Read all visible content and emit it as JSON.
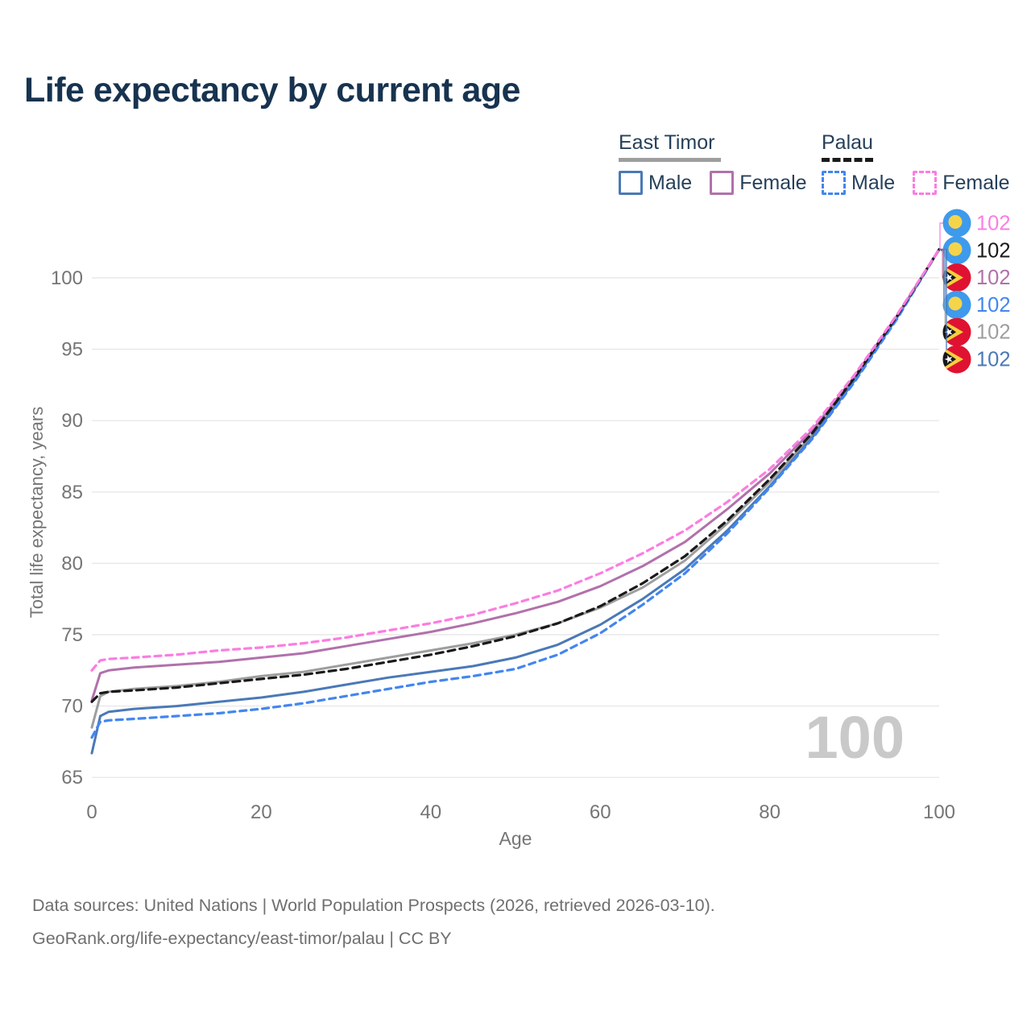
{
  "title": "Life expectancy by current age",
  "legend": {
    "groups": [
      {
        "label": "East Timor",
        "line_style": "solid",
        "underline_color": "#9e9e9e",
        "items": [
          {
            "label": "Male",
            "color": "#4a79b7",
            "dashed": false
          },
          {
            "label": "Female",
            "color": "#b171ab",
            "dashed": false
          }
        ]
      },
      {
        "label": "Palau",
        "line_style": "dashed",
        "underline_color": "#1a1a1a",
        "items": [
          {
            "label": "Male",
            "color": "#4286f0",
            "dashed": true
          },
          {
            "label": "Female",
            "color": "#fb7de1",
            "dashed": true
          }
        ]
      }
    ]
  },
  "chart_data": {
    "type": "line",
    "title": "Life expectancy by current age",
    "xlabel": "Age",
    "ylabel": "Total life expectancy, years",
    "xticks": [
      0,
      20,
      40,
      60,
      80,
      100
    ],
    "yticks": [
      65,
      70,
      75,
      80,
      85,
      90,
      95,
      100
    ],
    "xlim": [
      0,
      100
    ],
    "ylim": [
      64,
      103
    ],
    "grid": "horizontal",
    "legend_position": "top-right",
    "watermark": "100",
    "x": [
      0,
      1,
      2,
      5,
      10,
      15,
      20,
      25,
      30,
      35,
      40,
      45,
      50,
      55,
      60,
      65,
      70,
      75,
      80,
      85,
      90,
      95,
      100
    ],
    "series": [
      {
        "id": "east-timor-both",
        "name": "East Timor",
        "country": "East Timor",
        "color": "#9e9e9e",
        "dashed": false,
        "label_row": 4,
        "end_label": "102",
        "values": [
          68.5,
          70.7,
          71.0,
          71.2,
          71.4,
          71.7,
          72.1,
          72.4,
          72.9,
          73.4,
          73.9,
          74.4,
          75.0,
          75.8,
          76.9,
          78.3,
          80.2,
          82.8,
          85.7,
          89.0,
          92.9,
          97.2,
          102
        ]
      },
      {
        "id": "east-timor-male",
        "name": "East Timor Male",
        "country": "East Timor",
        "color": "#4a79b7",
        "dashed": false,
        "label_row": 5,
        "end_label": "102",
        "values": [
          66.7,
          69.3,
          69.6,
          69.8,
          70.0,
          70.3,
          70.6,
          71.0,
          71.5,
          72.0,
          72.4,
          72.8,
          73.4,
          74.3,
          75.7,
          77.5,
          79.6,
          82.3,
          85.4,
          88.8,
          92.8,
          97.2,
          102
        ]
      },
      {
        "id": "east-timor-female",
        "name": "East Timor Female",
        "country": "East Timor",
        "color": "#b171ab",
        "dashed": false,
        "label_row": 2,
        "end_label": "102",
        "values": [
          70.4,
          72.3,
          72.5,
          72.7,
          72.9,
          73.1,
          73.4,
          73.7,
          74.2,
          74.7,
          75.2,
          75.8,
          76.5,
          77.3,
          78.4,
          79.8,
          81.5,
          83.8,
          86.3,
          89.3,
          93.1,
          97.3,
          102
        ]
      },
      {
        "id": "palau-male",
        "name": "Palau Male",
        "country": "Palau",
        "color": "#4286f0",
        "dashed": true,
        "label_row": 3,
        "end_label": "102",
        "values": [
          67.8,
          68.9,
          69.0,
          69.1,
          69.3,
          69.5,
          69.8,
          70.2,
          70.7,
          71.2,
          71.7,
          72.1,
          72.6,
          73.6,
          75.1,
          77.1,
          79.3,
          82.1,
          85.3,
          88.7,
          92.7,
          97.1,
          102
        ]
      },
      {
        "id": "palau-both",
        "name": "Palau",
        "country": "Palau",
        "color": "#1a1a1a",
        "dashed": true,
        "label_row": 1,
        "end_label": "102",
        "values": [
          70.3,
          70.9,
          71.0,
          71.1,
          71.3,
          71.6,
          71.9,
          72.2,
          72.6,
          73.1,
          73.6,
          74.2,
          74.9,
          75.8,
          77.0,
          78.6,
          80.5,
          83.0,
          85.9,
          89.1,
          93.0,
          97.3,
          102
        ]
      },
      {
        "id": "palau-female",
        "name": "Palau Female",
        "country": "Palau",
        "color": "#fb7de1",
        "dashed": true,
        "label_row": 0,
        "end_label": "102",
        "values": [
          72.5,
          73.2,
          73.3,
          73.4,
          73.6,
          73.9,
          74.1,
          74.4,
          74.8,
          75.3,
          75.8,
          76.4,
          77.2,
          78.1,
          79.3,
          80.7,
          82.3,
          84.3,
          86.6,
          89.5,
          93.2,
          97.4,
          102
        ]
      }
    ],
    "flag_colors": {
      "palau": {
        "field": "#3e9aec",
        "moon": "#f4d44a"
      },
      "east_timor": {
        "field": "#e01231",
        "chevron": "#f6cf3e",
        "triangle": "#17171c",
        "star": "#ffffff"
      }
    }
  },
  "footer": {
    "line1": "Data sources: United Nations | World Population Prospects (2026, retrieved 2026-03-10).",
    "line2": "GeoRank.org/life-expectancy/east-timor/palau | CC BY"
  }
}
